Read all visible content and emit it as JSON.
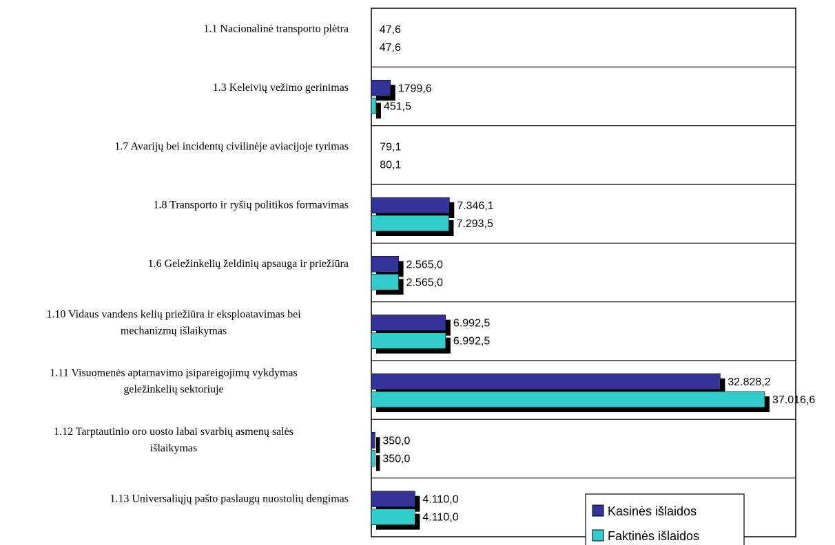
{
  "chart_data": {
    "type": "bar",
    "orientation": "horizontal",
    "categories": [
      "1.1 Nacionalinė transporto plėtra",
      "1.3 Keleivių vežimo gerinimas",
      "1.7 Avarijų bei incidentų civilinėje aviacijoje tyrimas",
      "1.8 Transporto ir ryšių politikos formavimas",
      "1.6 Geležinkelių želdinių apsauga ir priežiūra",
      "1.10 Vidaus vandens kelių priežiūra ir eksploatavimas bei mechanizmų išlaikymas",
      "1.11 Visuomenės aptarnavimo įsipareigojimų vykdymas geležinkelių sektoriuje",
      "1.12 Tarptautinio oro uosto labai svarbių asmenų salės išlaikymas",
      "1.13 Universaliųjų pašto paslaugų nuostolių dengimas"
    ],
    "category_lines": [
      [
        "1.1 Nacionalinė transporto plėtra"
      ],
      [
        "1.3 Keleivių vežimo gerinimas"
      ],
      [
        "1.7 Avarijų bei incidentų civilinėje aviacijoje tyrimas"
      ],
      [
        "1.8 Transporto ir ryšių politikos formavimas"
      ],
      [
        "1.6 Geležinkelių želdinių apsauga ir priežiūra"
      ],
      [
        "1.10 Vidaus vandens kelių priežiūra ir eksploatavimas bei",
        "mechanizmų išlaikymas"
      ],
      [
        "1.11 Visuomenės aptarnavimo įsipareigojimų vykdymas",
        "geležinkelių sektoriuje"
      ],
      [
        "1.12 Tarptautinio oro uosto labai svarbių asmenų salės",
        "išlaikymas"
      ],
      [
        "1.13 Universaliųjų pašto paslaugų nuostolių dengimas"
      ]
    ],
    "series": [
      {
        "name": "Kasinės išlaidos",
        "color": "#333399",
        "values": [
          47.6,
          1799.6,
          79.1,
          7346.1,
          2565.0,
          6992.5,
          32828.2,
          350.0,
          4110.0
        ],
        "labels": [
          "47,6",
          "1799,6",
          "79,1",
          "7.346,1",
          "2.565,0",
          "6.992,5",
          "32.828,2",
          "350,0",
          "4.110,0"
        ]
      },
      {
        "name": "Faktinės išlaidos",
        "color": "#33CCCC",
        "values": [
          47.6,
          451.5,
          80.1,
          7293.5,
          2565.0,
          6992.5,
          37016.6,
          350.0,
          4110.0
        ],
        "labels": [
          "47,6",
          "451,5",
          "80,1",
          "7.293,5",
          "2.565,0",
          "6.992,5",
          "37.016,6",
          "350,0",
          "4.110,0"
        ]
      }
    ],
    "xlim": [
      0,
      39000
    ],
    "grid": true,
    "legend_position": "bottom-right",
    "title": "",
    "xlabel": "",
    "ylabel": ""
  }
}
